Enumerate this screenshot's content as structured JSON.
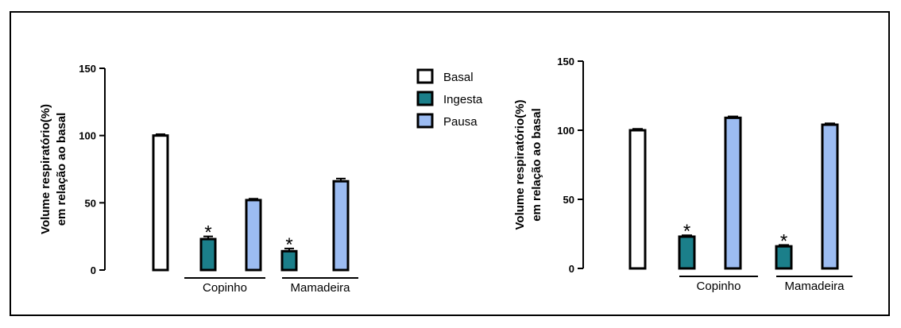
{
  "chart_data": [
    {
      "type": "bar",
      "ylabel": [
        "Volume respiratório(%)",
        "em relação ao basal"
      ],
      "ylim": [
        0,
        150
      ],
      "yticks": [
        0,
        50,
        100,
        150
      ],
      "groups": [
        "Copinho",
        "Mamadeira"
      ],
      "legend": {
        "position": "right",
        "entries": [
          "Basal",
          "Ingesta",
          "Pausa"
        ]
      },
      "bars": [
        {
          "series": "Basal",
          "group": null,
          "value": 100,
          "error": 1,
          "sig": ""
        },
        {
          "series": "Ingesta",
          "group": "Copinho",
          "value": 23,
          "error": 2,
          "sig": "*"
        },
        {
          "series": "Pausa",
          "group": "Copinho",
          "value": 52,
          "error": 1,
          "sig": ""
        },
        {
          "series": "Ingesta",
          "group": "Mamadeira",
          "value": 14,
          "error": 2,
          "sig": "*"
        },
        {
          "series": "Pausa",
          "group": "Mamadeira",
          "value": 66,
          "error": 2,
          "sig": ""
        }
      ]
    },
    {
      "type": "bar",
      "ylabel": [
        "Volume respiratório(%)",
        "em relação ao basal"
      ],
      "ylim": [
        0,
        150
      ],
      "yticks": [
        0,
        50,
        100,
        150
      ],
      "groups": [
        "Copinho",
        "Mamadeira"
      ],
      "bars": [
        {
          "series": "Basal",
          "group": null,
          "value": 100,
          "error": 1,
          "sig": ""
        },
        {
          "series": "Ingesta",
          "group": "Copinho",
          "value": 23,
          "error": 1,
          "sig": "*"
        },
        {
          "series": "Pausa",
          "group": "Copinho",
          "value": 109,
          "error": 1,
          "sig": ""
        },
        {
          "series": "Ingesta",
          "group": "Mamadeira",
          "value": 16,
          "error": 1,
          "sig": "*"
        },
        {
          "series": "Pausa",
          "group": "Mamadeira",
          "value": 104,
          "error": 1,
          "sig": ""
        }
      ]
    }
  ],
  "colors": {
    "Basal": "#ffffff",
    "Ingesta": "#1b7f8a",
    "Pausa": "#9cbcf2",
    "stroke": "#000000"
  }
}
